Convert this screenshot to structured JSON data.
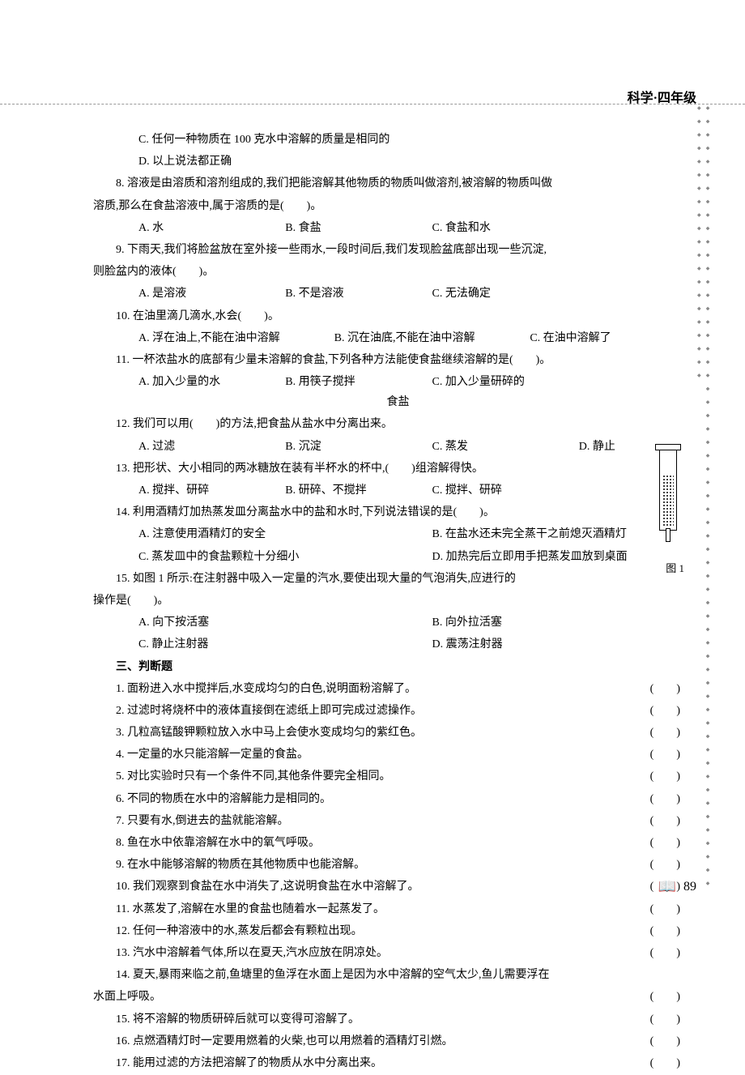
{
  "header": "科学·四年级",
  "pageNumber": "89",
  "figureLabel": "图 1",
  "items": {
    "optC": "C. 任何一种物质在 100 克水中溶解的质量是相同的",
    "optD": "D. 以上说法都正确",
    "q8": "8. 溶液是由溶质和溶剂组成的,我们把能溶解其他物质的物质叫做溶剂,被溶解的物质叫做",
    "q8b": "溶质,那么在食盐溶液中,属于溶质的是(　　)。",
    "q8A": "A. 水",
    "q8B": "B. 食盐",
    "q8C": "C. 食盐和水",
    "q9": "9. 下雨天,我们将脸盆放在室外接一些雨水,一段时间后,我们发现脸盆底部出现一些沉淀,",
    "q9b": "则脸盆内的液体(　　)。",
    "q9A": "A. 是溶液",
    "q9B": "B. 不是溶液",
    "q9C": "C. 无法确定",
    "q10": "10. 在油里滴几滴水,水会(　　)。",
    "q10A": "A. 浮在油上,不能在油中溶解",
    "q10B": "B. 沉在油底,不能在油中溶解",
    "q10C": "C. 在油中溶解了",
    "q11": "11. 一杯浓盐水的底部有少量未溶解的食盐,下列各种方法能使食盐继续溶解的是(　　)。",
    "q11A": "A. 加入少量的水",
    "q11B": "B. 用筷子搅拌",
    "q11C": "C. 加入少量研碎的食盐",
    "q12": "12. 我们可以用(　　)的方法,把食盐从盐水中分离出来。",
    "q12A": "A. 过滤",
    "q12B": "B. 沉淀",
    "q12C": "C. 蒸发",
    "q12D": "D. 静止",
    "q13": "13. 把形状、大小相同的两冰糖放在装有半杯水的杯中,(　　)组溶解得快。",
    "q13A": "A. 搅拌、研碎",
    "q13B": "B. 研碎、不搅拌",
    "q13C": "C. 搅拌、研碎",
    "q14": "14. 利用酒精灯加热蒸发皿分离盐水中的盐和水时,下列说法错误的是(　　)。",
    "q14A": "A. 注意使用酒精灯的安全",
    "q14B": "B. 在盐水还未完全蒸干之前熄灭酒精灯",
    "q14C": "C. 蒸发皿中的食盐颗粒十分细小",
    "q14D": "D. 加热完后立即用手把蒸发皿放到桌面",
    "q15": "15. 如图 1 所示:在注射器中吸入一定量的汽水,要使出现大量的气泡消失,应进行的",
    "q15b": "操作是(　　)。",
    "q15A": "A. 向下按活塞",
    "q15B": "B. 向外拉活塞",
    "q15C": "C. 静止注射器",
    "q15D": "D. 震荡注射器",
    "sectionTitle": "三、判断题",
    "j1": "1. 面粉进入水中搅拌后,水变成均匀的白色,说明面粉溶解了。",
    "j2": "2. 过滤时将烧杯中的液体直接倒在滤纸上即可完成过滤操作。",
    "j3": "3. 几粒高锰酸钾颗粒放入水中马上会使水变成均匀的紫红色。",
    "j4": "4. 一定量的水只能溶解一定量的食盐。",
    "j5": "5. 对比实验时只有一个条件不同,其他条件要完全相同。",
    "j6": "6. 不同的物质在水中的溶解能力是相同的。",
    "j7": "7. 只要有水,倒进去的盐就能溶解。",
    "j8": "8. 鱼在水中依靠溶解在水中的氧气呼吸。",
    "j9": "9. 在水中能够溶解的物质在其他物质中也能溶解。",
    "j10": "10. 我们观察到食盐在水中消失了,这说明食盐在水中溶解了。",
    "j11": "11. 水蒸发了,溶解在水里的食盐也随着水一起蒸发了。",
    "j12": "12. 任何一种溶液中的水,蒸发后都会有颗粒出现。",
    "j13": "13. 汽水中溶解着气体,所以在夏天,汽水应放在阴凉处。",
    "j14": "14. 夏天,暴雨来临之前,鱼塘里的鱼浮在水面上是因为水中溶解的空气太少,鱼儿需要浮在",
    "j14b": "水面上呼吸。",
    "j15": "15. 将不溶解的物质研碎后就可以变得可溶解了。",
    "j16": "16. 点燃酒精灯时一定要用燃着的火柴,也可以用燃着的酒精灯引燃。",
    "j17": "17. 能用过滤的方法把溶解了的物质从水中分离出来。",
    "bracket": "(　　)"
  }
}
